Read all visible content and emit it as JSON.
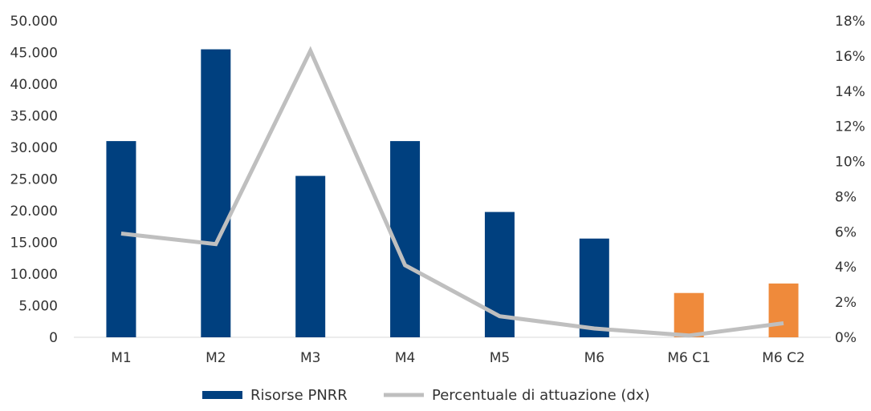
{
  "chart_data": {
    "type": "bar",
    "categories": [
      "M1",
      "M2",
      "M3",
      "M4",
      "M5",
      "M6",
      "M6 C1",
      "M6 C2"
    ],
    "series": [
      {
        "name": "Risorse PNRR",
        "type": "bar",
        "axis": "left",
        "values": [
          31000,
          45500,
          25500,
          31000,
          19800,
          15600,
          7000,
          8500
        ],
        "colors": [
          "#00407f",
          "#00407f",
          "#00407f",
          "#00407f",
          "#00407f",
          "#00407f",
          "#ef8a3b",
          "#ef8a3b"
        ]
      },
      {
        "name": "Percentuale di attuazione (dx)",
        "type": "line",
        "axis": "right",
        "values": [
          5.9,
          5.3,
          16.3,
          4.1,
          1.2,
          0.5,
          0.1,
          0.8
        ],
        "color": "#bfbfbf"
      }
    ],
    "y_left": {
      "min": 0,
      "max": 50000,
      "ticks": [
        0,
        5000,
        10000,
        15000,
        20000,
        25000,
        30000,
        35000,
        40000,
        45000,
        50000
      ],
      "tick_labels": [
        "0",
        "5.000",
        "10.000",
        "15.000",
        "20.000",
        "25.000",
        "30.000",
        "35.000",
        "40.000",
        "45.000",
        "50.000"
      ]
    },
    "y_right": {
      "min": 0,
      "max": 18,
      "ticks": [
        0,
        2,
        4,
        6,
        8,
        10,
        12,
        14,
        16,
        18
      ],
      "tick_labels": [
        "0%",
        "2%",
        "4%",
        "6%",
        "8%",
        "10%",
        "12%",
        "14%",
        "16%",
        "18%"
      ]
    },
    "grid": false,
    "legend": {
      "position": "bottom",
      "items": [
        "Risorse PNRR",
        "Percentuale di attuazione (dx)"
      ]
    },
    "colors": {
      "primary_bar": "#00407f",
      "highlight_bar": "#ef8a3b",
      "line": "#bfbfbf",
      "axis": "#d9d9d9",
      "text": "#333333"
    }
  }
}
